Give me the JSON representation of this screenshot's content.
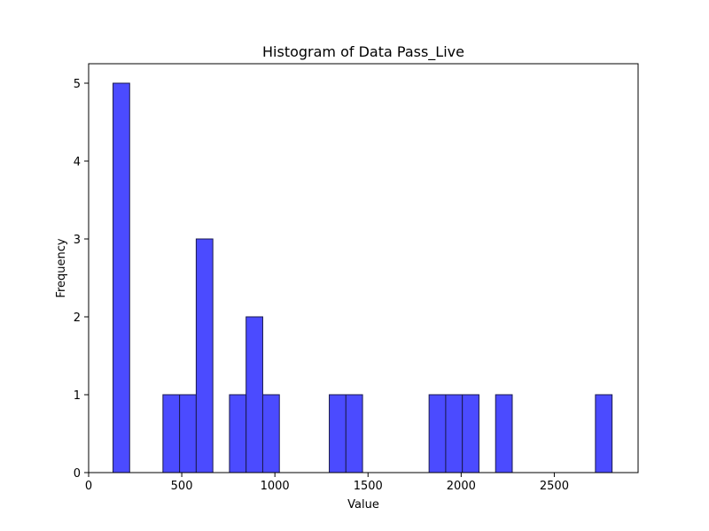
{
  "chart_data": {
    "type": "bar",
    "title": "Histogram of Data Pass_Live",
    "xlabel": "Value",
    "ylabel": "Frequency",
    "xlim": [
      0,
      2950
    ],
    "ylim": [
      0,
      5.25
    ],
    "x_ticks": [
      0,
      500,
      1000,
      1500,
      2000,
      2500
    ],
    "y_ticks": [
      0,
      1,
      2,
      3,
      4,
      5
    ],
    "bin_width": 89.3,
    "bar_color": "#4b4bff",
    "edge_color": "#1a1a4d",
    "grid": false,
    "bins": [
      {
        "start": 131,
        "end": 220.3,
        "count": 5
      },
      {
        "start": 399,
        "end": 488.3,
        "count": 1
      },
      {
        "start": 488.3,
        "end": 577.6,
        "count": 1
      },
      {
        "start": 577.6,
        "end": 666.9,
        "count": 3
      },
      {
        "start": 756.2,
        "end": 845.5,
        "count": 1
      },
      {
        "start": 845.5,
        "end": 934.8,
        "count": 2
      },
      {
        "start": 934.8,
        "end": 1024.1,
        "count": 1
      },
      {
        "start": 1292,
        "end": 1381.3,
        "count": 1
      },
      {
        "start": 1381.3,
        "end": 1470.6,
        "count": 1
      },
      {
        "start": 1827.8,
        "end": 1917.1,
        "count": 1
      },
      {
        "start": 1917.1,
        "end": 2006.4,
        "count": 1
      },
      {
        "start": 2006.4,
        "end": 2095.7,
        "count": 1
      },
      {
        "start": 2185,
        "end": 2274.3,
        "count": 1
      },
      {
        "start": 2721,
        "end": 2810.3,
        "count": 1
      }
    ]
  }
}
